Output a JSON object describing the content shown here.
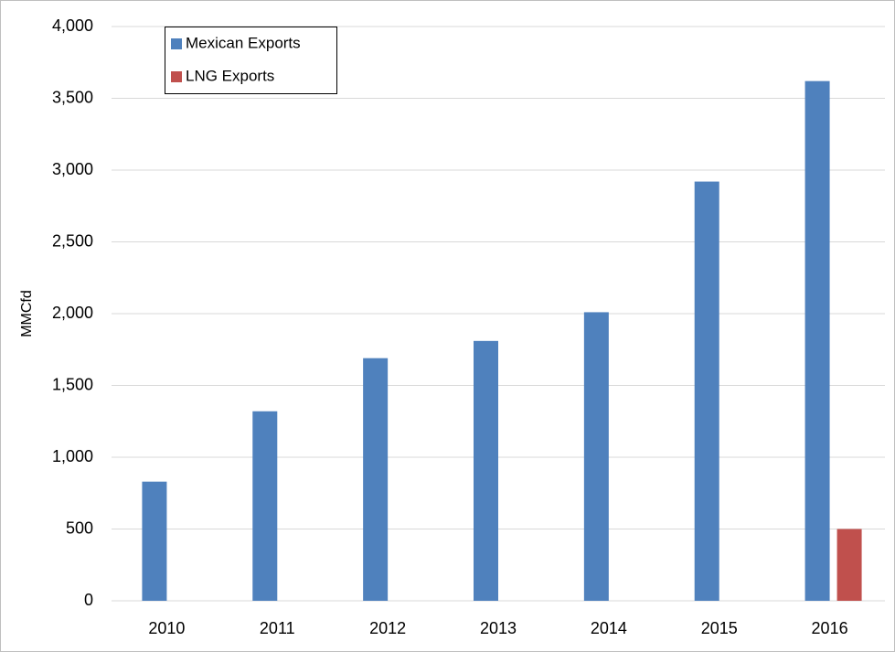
{
  "chart_data": {
    "type": "bar",
    "y_label": "MMCfd",
    "categories": [
      "2010",
      "2011",
      "2012",
      "2013",
      "2014",
      "2015",
      "2016"
    ],
    "series": [
      {
        "name": "Mexican Exports",
        "color": "#4f81bd",
        "values": [
          830,
          1320,
          1690,
          1810,
          2010,
          2920,
          3620
        ]
      },
      {
        "name": "LNG Exports",
        "color": "#c0504d",
        "values": [
          0,
          0,
          0,
          0,
          0,
          0,
          500
        ]
      }
    ],
    "ylim": [
      0,
      4000
    ],
    "yticks": [
      0,
      500,
      {
        "value": 1000,
        "label": "1,000"
      },
      {
        "value": 1500,
        "label": "1,500"
      },
      {
        "value": 2000,
        "label": "2,000"
      },
      {
        "value": 2500,
        "label": "2,500"
      },
      {
        "value": 3000,
        "label": "3,000"
      },
      {
        "value": 3500,
        "label": "3,500"
      },
      {
        "value": 4000,
        "label": "4,000"
      }
    ],
    "grid": true,
    "legend": "upper left"
  }
}
